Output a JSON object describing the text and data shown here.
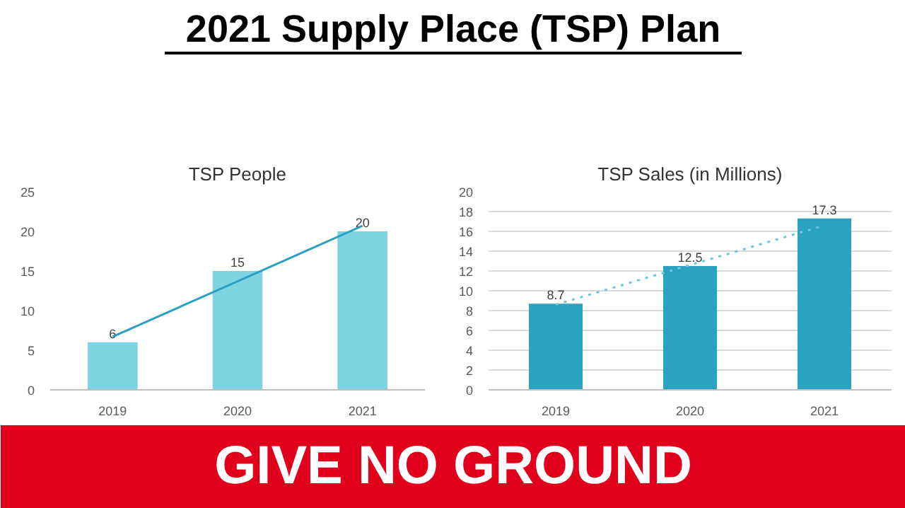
{
  "chart_data": [
    {
      "type": "other",
      "title": "2021 Supply Place (TSP) Plan",
      "annotations": [
        "GIVE NO GROUND"
      ]
    },
    {
      "type": "bar",
      "title": "TSP People",
      "categories": [
        "2019",
        "2020",
        "2021"
      ],
      "ylim": [
        0,
        25
      ],
      "yticks": [
        0,
        5,
        10,
        15,
        20,
        25
      ],
      "grid": false,
      "series": [
        {
          "type": "bar",
          "color": "#7fd4e4",
          "values": [
            6,
            15,
            20
          ],
          "value_labels": [
            "6",
            "15",
            "20"
          ]
        },
        {
          "type": "line",
          "color": "#2a9fc0",
          "line_style": "solid",
          "values": [
            6.7,
            13.7,
            20.7
          ]
        }
      ]
    },
    {
      "type": "bar",
      "title": "TSP Sales (in Millions)",
      "categories": [
        "2019",
        "2020",
        "2021"
      ],
      "ylim": [
        0,
        20
      ],
      "yticks": [
        0,
        2,
        4,
        6,
        8,
        10,
        12,
        14,
        16,
        18,
        20
      ],
      "grid": "y",
      "series": [
        {
          "type": "bar",
          "color": "#2ba2c0",
          "values": [
            8.7,
            12.5,
            17.3
          ],
          "value_labels": [
            "8.7",
            "12.5",
            "17.3"
          ]
        },
        {
          "type": "line",
          "color": "#6cc6da",
          "line_style": "dotted",
          "values": [
            8.6,
            12.6,
            16.6
          ]
        }
      ]
    }
  ]
}
